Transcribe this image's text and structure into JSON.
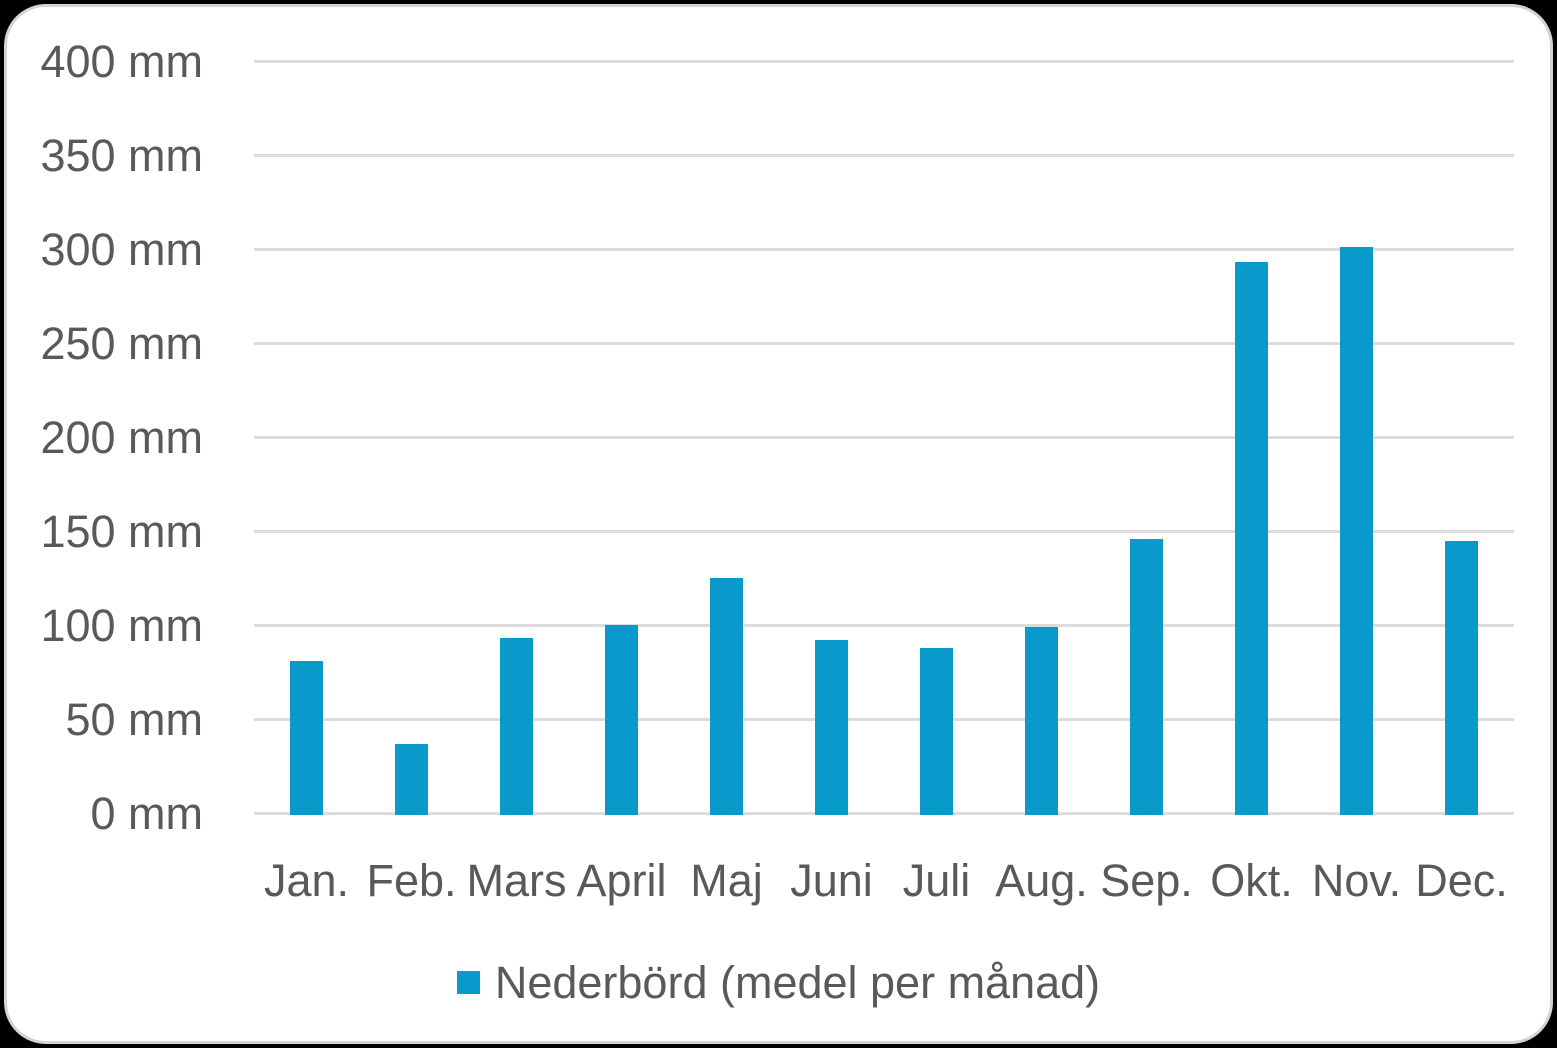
{
  "colors": {
    "bar": "#0999cb",
    "text": "#595959",
    "gridline": "#dcdcdc",
    "card-border": "#d4d4d4",
    "card-background": "#ffffff",
    "page-background": "#000000"
  },
  "chart_data": {
    "type": "bar",
    "title": "",
    "xlabel": "",
    "ylabel": "",
    "categories": [
      "Jan.",
      "Feb.",
      "Mars",
      "April",
      "Maj",
      "Juni",
      "Juli",
      "Aug.",
      "Sep.",
      "Okt.",
      "Nov.",
      "Dec."
    ],
    "values": [
      82,
      38,
      94,
      101,
      126,
      93,
      89,
      100,
      147,
      294,
      302,
      146
    ],
    "unit": "mm",
    "series_name": "Nederbörd (medel per månad)",
    "ylim": [
      0,
      400
    ],
    "ytick_step": 50,
    "ytick_labels": [
      "0 mm",
      "50 mm",
      "100 mm",
      "150 mm",
      "200 mm",
      "250 mm",
      "300 mm",
      "350 mm",
      "400 mm"
    ],
    "grid": true,
    "legend_position": "bottom"
  },
  "legend": {
    "marker": "square"
  }
}
